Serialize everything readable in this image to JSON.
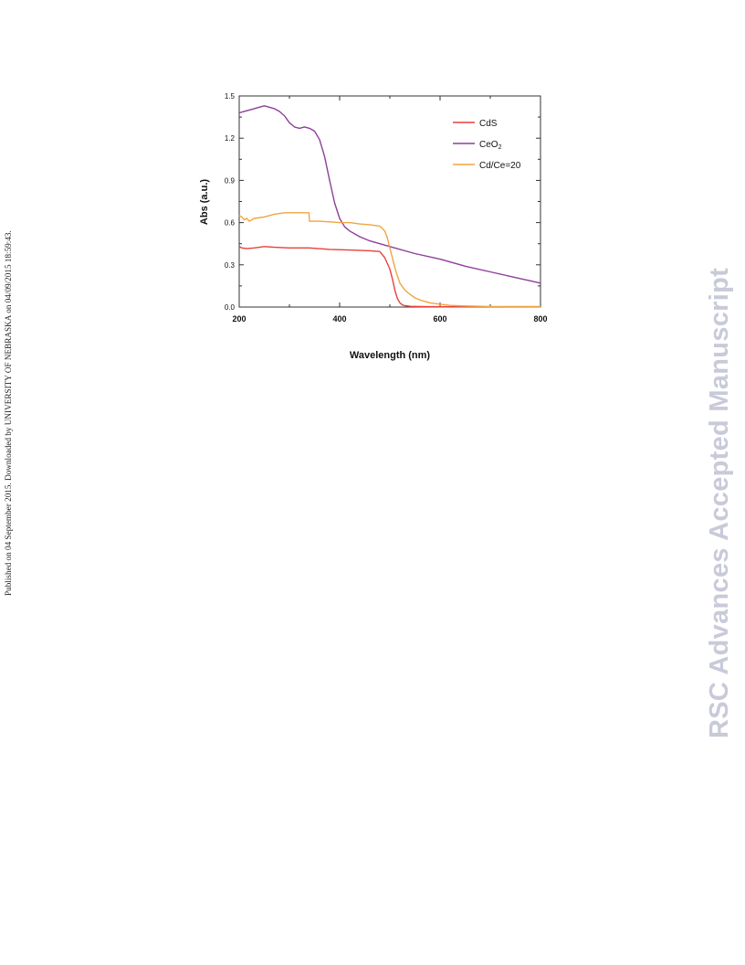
{
  "side_note": "Published on 04 September 2015. Downloaded by UNIVERSITY OF NEBRASKA on 04/09/2015 18:59:43.",
  "watermark": "RSC Advances Accepted Manuscript",
  "chart_data": {
    "type": "line",
    "title": "",
    "xlabel": "Wavelength (nm)",
    "ylabel": "Abs (a.u.)",
    "xlim": [
      200,
      800
    ],
    "ylim": [
      0.0,
      1.5
    ],
    "xticks": [
      200,
      400,
      600,
      800
    ],
    "yticks": [
      0.0,
      0.3,
      0.6,
      0.9,
      1.2,
      1.5
    ],
    "ytick_labels": [
      "0.0",
      "0.3",
      "0.6",
      "0.9",
      "1.2",
      "1.5"
    ],
    "grid": false,
    "legend_position": "top-right",
    "series": [
      {
        "name": "CdS",
        "color": "#e8403b",
        "x": [
          200,
          205,
          215,
          230,
          250,
          270,
          300,
          340,
          380,
          420,
          460,
          480,
          490,
          500,
          505,
          510,
          515,
          520,
          525,
          530,
          540,
          560,
          600,
          700,
          800
        ],
        "y": [
          0.43,
          0.42,
          0.415,
          0.42,
          0.43,
          0.425,
          0.42,
          0.42,
          0.41,
          0.405,
          0.4,
          0.395,
          0.35,
          0.27,
          0.2,
          0.12,
          0.06,
          0.03,
          0.015,
          0.01,
          0.005,
          0.003,
          0.002,
          0.002,
          0.002
        ]
      },
      {
        "name": "CeO2",
        "color": "#8e3e9a",
        "x": [
          200,
          210,
          220,
          230,
          240,
          250,
          260,
          270,
          280,
          290,
          300,
          310,
          320,
          330,
          340,
          350,
          360,
          370,
          380,
          390,
          400,
          410,
          420,
          440,
          460,
          480,
          500,
          550,
          600,
          650,
          700,
          750,
          800
        ],
        "y": [
          1.38,
          1.39,
          1.4,
          1.41,
          1.42,
          1.43,
          1.42,
          1.41,
          1.39,
          1.36,
          1.31,
          1.28,
          1.27,
          1.28,
          1.27,
          1.25,
          1.19,
          1.07,
          0.9,
          0.74,
          0.63,
          0.57,
          0.54,
          0.5,
          0.47,
          0.45,
          0.43,
          0.38,
          0.34,
          0.29,
          0.25,
          0.21,
          0.17
        ]
      },
      {
        "name": "Cd/Ce=20",
        "color": "#f0a540",
        "x": [
          200,
          205,
          210,
          215,
          220,
          230,
          250,
          270,
          290,
          310,
          330,
          339,
          340,
          360,
          380,
          400,
          420,
          440,
          460,
          480,
          490,
          495,
          500,
          505,
          510,
          515,
          520,
          530,
          540,
          550,
          560,
          580,
          600,
          620,
          650,
          700,
          800
        ],
        "y": [
          0.65,
          0.64,
          0.62,
          0.63,
          0.61,
          0.63,
          0.64,
          0.66,
          0.67,
          0.67,
          0.67,
          0.67,
          0.61,
          0.61,
          0.605,
          0.6,
          0.6,
          0.59,
          0.585,
          0.575,
          0.54,
          0.49,
          0.42,
          0.35,
          0.28,
          0.22,
          0.17,
          0.12,
          0.09,
          0.065,
          0.05,
          0.03,
          0.02,
          0.012,
          0.008,
          0.004,
          0.003
        ]
      }
    ]
  }
}
